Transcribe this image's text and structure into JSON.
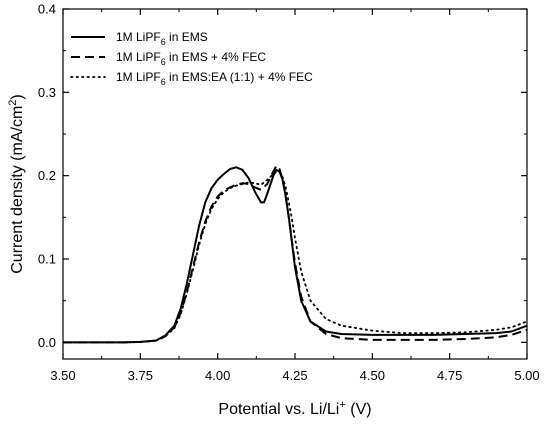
{
  "chart_data": {
    "type": "line",
    "xlabel": {
      "pre": "Potential vs. Li/Li",
      "sup": "+",
      "post": " (V)"
    },
    "ylabel": {
      "pre": "Current density (mA/cm",
      "sup": "2",
      "post": ")"
    },
    "xlim": [
      3.5,
      5.0
    ],
    "ylim": [
      -0.02,
      0.4
    ],
    "x_ticks": [
      3.5,
      3.75,
      4.0,
      4.25,
      4.5,
      4.75,
      5.0
    ],
    "x_tick_labels": [
      "3.50",
      "3.75",
      "4.00",
      "4.25",
      "4.50",
      "4.75",
      "5.00"
    ],
    "y_ticks": [
      0.0,
      0.1,
      0.2,
      0.3,
      0.4
    ],
    "y_tick_labels": [
      "0.0",
      "0.1",
      "0.2",
      "0.3",
      "0.4"
    ],
    "grid": false,
    "legend_position": "top-left",
    "series": [
      {
        "name": "1M LiPF6 in EMS",
        "legend": {
          "pre": "1M LiPF",
          "sub": "6",
          "post": " in EMS"
        },
        "style": "solid",
        "x": [
          3.5,
          3.6,
          3.7,
          3.75,
          3.8,
          3.83,
          3.86,
          3.88,
          3.9,
          3.92,
          3.94,
          3.96,
          3.98,
          4.0,
          4.02,
          4.04,
          4.06,
          4.08,
          4.1,
          4.12,
          4.14,
          4.15,
          4.16,
          4.18,
          4.19,
          4.2,
          4.21,
          4.22,
          4.23,
          4.24,
          4.25,
          4.27,
          4.3,
          4.35,
          4.4,
          4.5,
          4.6,
          4.7,
          4.8,
          4.9,
          4.95,
          5.0
        ],
        "y": [
          0.0,
          0.0,
          0.0,
          0.0005,
          0.002,
          0.008,
          0.02,
          0.04,
          0.07,
          0.105,
          0.14,
          0.168,
          0.185,
          0.195,
          0.202,
          0.208,
          0.21,
          0.207,
          0.197,
          0.181,
          0.168,
          0.168,
          0.178,
          0.2,
          0.207,
          0.205,
          0.195,
          0.175,
          0.15,
          0.12,
          0.09,
          0.05,
          0.025,
          0.013,
          0.01,
          0.009,
          0.009,
          0.009,
          0.01,
          0.011,
          0.013,
          0.02
        ]
      },
      {
        "name": "1M LiPF6 in EMS + 4% FEC",
        "legend": {
          "pre": "1M LiPF",
          "sub": "6",
          "post": " in EMS + 4% FEC"
        },
        "style": "dashed",
        "x": [
          3.5,
          3.6,
          3.7,
          3.75,
          3.8,
          3.83,
          3.86,
          3.88,
          3.9,
          3.92,
          3.94,
          3.96,
          3.98,
          4.0,
          4.02,
          4.04,
          4.06,
          4.08,
          4.1,
          4.12,
          4.14,
          4.16,
          4.18,
          4.19,
          4.2,
          4.21,
          4.22,
          4.23,
          4.24,
          4.25,
          4.27,
          4.3,
          4.35,
          4.4,
          4.5,
          4.6,
          4.7,
          4.8,
          4.9,
          4.95,
          5.0
        ],
        "y": [
          0.0,
          0.0,
          0.0,
          0.0005,
          0.002,
          0.007,
          0.018,
          0.035,
          0.06,
          0.09,
          0.12,
          0.145,
          0.163,
          0.175,
          0.182,
          0.186,
          0.189,
          0.191,
          0.19,
          0.186,
          0.183,
          0.19,
          0.205,
          0.212,
          0.208,
          0.195,
          0.175,
          0.15,
          0.122,
          0.095,
          0.055,
          0.025,
          0.01,
          0.005,
          0.003,
          0.003,
          0.003,
          0.004,
          0.006,
          0.009,
          0.015
        ]
      },
      {
        "name": "1M LiPF6 in EMS:EA (1:1) + 4% FEC",
        "legend": {
          "pre": "1M LiPF",
          "sub": "6",
          "post": " in EMS:EA (1:1) + 4% FEC"
        },
        "style": "dotted",
        "x": [
          3.5,
          3.6,
          3.7,
          3.75,
          3.8,
          3.83,
          3.86,
          3.88,
          3.9,
          3.92,
          3.94,
          3.96,
          3.98,
          4.0,
          4.02,
          4.04,
          4.06,
          4.08,
          4.1,
          4.12,
          4.14,
          4.16,
          4.18,
          4.19,
          4.2,
          4.21,
          4.22,
          4.23,
          4.24,
          4.25,
          4.27,
          4.3,
          4.35,
          4.4,
          4.5,
          4.6,
          4.7,
          4.8,
          4.9,
          4.95,
          5.0
        ],
        "y": [
          0.0,
          0.0,
          0.0,
          0.0005,
          0.002,
          0.007,
          0.017,
          0.033,
          0.058,
          0.087,
          0.117,
          0.142,
          0.16,
          0.172,
          0.18,
          0.185,
          0.188,
          0.19,
          0.192,
          0.191,
          0.189,
          0.195,
          0.202,
          0.205,
          0.204,
          0.198,
          0.186,
          0.168,
          0.148,
          0.125,
          0.085,
          0.05,
          0.028,
          0.02,
          0.014,
          0.011,
          0.011,
          0.012,
          0.015,
          0.018,
          0.025
        ]
      }
    ]
  }
}
